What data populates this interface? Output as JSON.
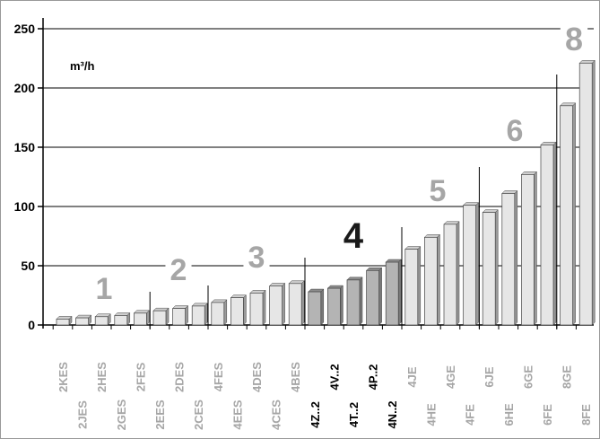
{
  "chart_data": {
    "type": "bar",
    "unit_label": "m³/h",
    "ylim": [
      0,
      250
    ],
    "yticks": [
      0,
      50,
      100,
      150,
      200,
      250
    ],
    "grid": "horizontal",
    "categories": [
      "2KES",
      "2JES",
      "2HES",
      "2GES",
      "2FES",
      "2EES",
      "2DES",
      "2CES",
      "4FES",
      "4EES",
      "4DES",
      "4CES",
      "4BES",
      "4Z..2",
      "4V..2",
      "4T..2",
      "4P..2",
      "4N..2",
      "4JE",
      "4HE",
      "4GE",
      "4FE",
      "6JE",
      "6HE",
      "6GE",
      "6FE",
      "8GE",
      "8FE"
    ],
    "values": [
      5,
      6,
      7,
      8,
      10,
      12,
      14,
      16,
      19,
      23,
      27,
      33,
      35,
      28,
      31,
      38,
      46,
      53,
      64,
      74,
      85,
      101,
      95,
      111,
      127,
      152,
      185,
      221
    ],
    "groups": [
      {
        "label": "1",
        "categories": [
          "2KES",
          "2JES",
          "2HES",
          "2GES",
          "2FES"
        ],
        "color": "#a6a6a6"
      },
      {
        "label": "2",
        "categories": [
          "2EES",
          "2DES",
          "2CES"
        ],
        "color": "#a6a6a6"
      },
      {
        "label": "3",
        "categories": [
          "4FES",
          "4EES",
          "4DES",
          "4CES",
          "4BES"
        ],
        "color": "#a6a6a6"
      },
      {
        "label": "4",
        "categories": [
          "4Z..2",
          "4V..2",
          "4T..2",
          "4P..2",
          "4N..2"
        ],
        "color": "#1a1a1a"
      },
      {
        "label": "5",
        "categories": [
          "4JE",
          "4HE",
          "4GE",
          "4FE"
        ],
        "color": "#a6a6a6"
      },
      {
        "label": "6",
        "categories": [
          "6JE",
          "6HE",
          "6GE",
          "6FE"
        ],
        "color": "#a6a6a6"
      },
      {
        "label": "8",
        "categories": [
          "8GE",
          "8FE"
        ],
        "color": "#a6a6a6"
      }
    ],
    "colors": {
      "bar_light": "#e6e6e6",
      "bar_dark": "#b4b4b4",
      "label_light": "#a6a6a6",
      "label_dark": "#000000",
      "grid": "#000000",
      "frame": "#999999"
    }
  }
}
